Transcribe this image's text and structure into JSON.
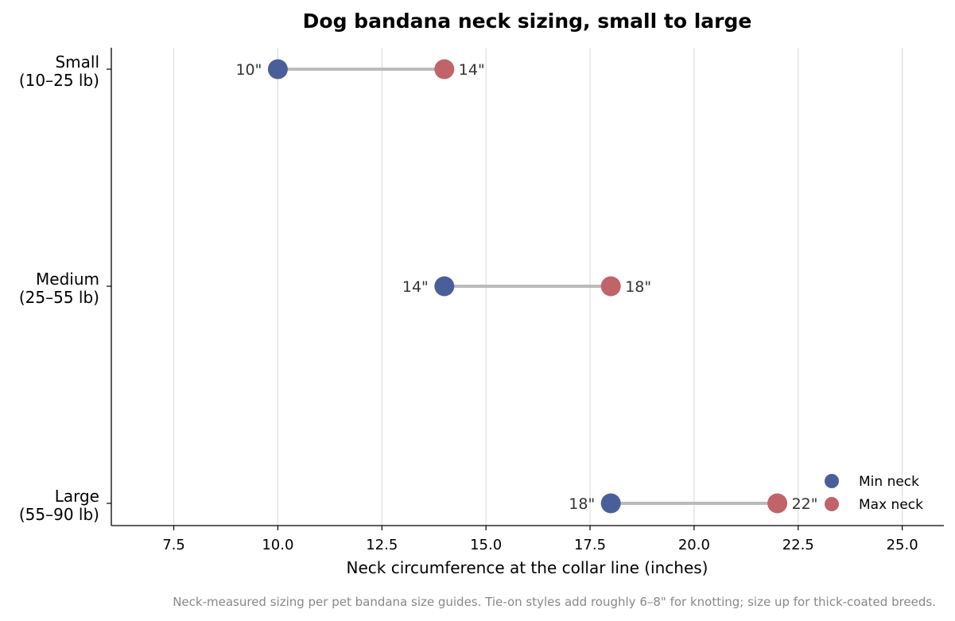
{
  "chart_data": {
    "type": "dumbbell",
    "title": "Dog bandana neck sizing, small to large",
    "xlabel": "Neck circumference at the collar line (inches)",
    "ylabel": "",
    "xlim": [
      6.0,
      26.0
    ],
    "xticks": [
      "7.5",
      "10.0",
      "12.5",
      "15.0",
      "17.5",
      "20.0",
      "22.5",
      "25.0"
    ],
    "grid": "vertical",
    "categories": [
      {
        "line1": "Small",
        "line2": "(10–25 lb)"
      },
      {
        "line1": "Medium",
        "line2": "(25–55 lb)"
      },
      {
        "line1": "Large",
        "line2": "(55–90 lb)"
      }
    ],
    "series": [
      {
        "name": "Min neck",
        "values": [
          10,
          14,
          18
        ],
        "labels": [
          "10\"",
          "14\"",
          "18\""
        ],
        "color": "#4a5f9a"
      },
      {
        "name": "Max neck",
        "values": [
          14,
          18,
          22
        ],
        "labels": [
          "14\"",
          "18\"",
          "22\""
        ],
        "color": "#c0646a"
      }
    ],
    "connector_color": "#bbbbbb",
    "legend_position": "lower-right",
    "footnote": "Neck-measured sizing per pet bandana size guides. Tie-on styles add roughly 6–8\" for knotting; size up for thick-coated breeds."
  }
}
